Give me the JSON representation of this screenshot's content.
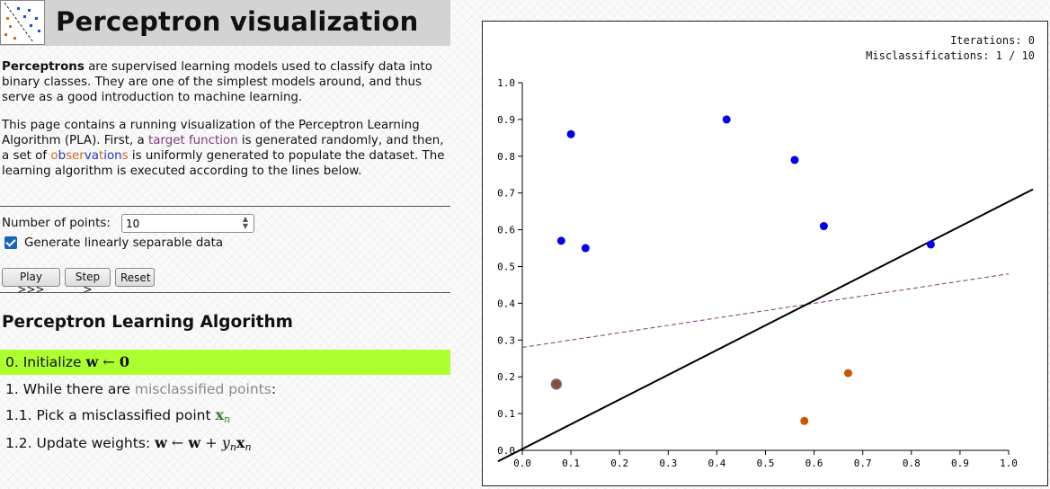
{
  "header": {
    "title": "Perceptron visualization",
    "logo_icon": "scatter-plot-icon"
  },
  "intro": {
    "p1_bold": "Perceptrons",
    "p1_rest": " are supervised learning models used to classify data into binary classes. They are one of the simplest models around, and thus serve as a good introduction to machine learning.",
    "p2_a": "This page contains a running visualization of the Perceptron Learning Algorithm (PLA). First, a ",
    "p2_link1": "target function",
    "p2_b": " is generated randomly, and then, a set of ",
    "p2_obs": [
      "o",
      "b",
      "s",
      "e",
      "r",
      "v",
      "a",
      "t",
      "i",
      "o",
      "n",
      "s"
    ],
    "p2_c": " is uniformly generated to populate the dataset. The learning algorithm is executed according to the lines below."
  },
  "controls": {
    "num_points_label": "Number of points:",
    "num_points_value": "10",
    "linear_sep_label": "Generate linearly separable data",
    "linear_sep_checked": true,
    "play_label": "Play >>>",
    "step_label": "Step >",
    "reset_label": "Reset"
  },
  "algorithm": {
    "title": "Perceptron Learning Algorithm",
    "step0_prefix": "0. Initialize ",
    "step1_prefix": "1. While there are ",
    "step1_link": "misclassified points",
    "step1_suffix": ":",
    "step2_prefix": "1.1. Pick a misclassified point ",
    "step3_prefix": "1.2. Update weights: ",
    "active_step": 0,
    "highlight_color": "#adff2f"
  },
  "status": {
    "iterations": "Iterations: 0",
    "misclassifications": "Misclassifications: 1 / 10"
  },
  "chart_data": {
    "type": "scatter",
    "xlim": [
      0,
      1
    ],
    "ylim": [
      0,
      1
    ],
    "xticks": [
      "0.0",
      "0.1",
      "0.2",
      "0.3",
      "0.4",
      "0.5",
      "0.6",
      "0.7",
      "0.8",
      "0.9",
      "1.0"
    ],
    "yticks": [
      "0.0",
      "0.1",
      "0.2",
      "0.3",
      "0.4",
      "0.5",
      "0.6",
      "0.7",
      "0.8",
      "0.9",
      "1.0"
    ],
    "points": [
      {
        "x": 0.1,
        "y": 0.86,
        "cls": "blue"
      },
      {
        "x": 0.42,
        "y": 0.9,
        "cls": "blue"
      },
      {
        "x": 0.56,
        "y": 0.79,
        "cls": "blue"
      },
      {
        "x": 0.08,
        "y": 0.57,
        "cls": "blue"
      },
      {
        "x": 0.13,
        "y": 0.55,
        "cls": "blue"
      },
      {
        "x": 0.62,
        "y": 0.61,
        "cls": "blue"
      },
      {
        "x": 0.84,
        "y": 0.56,
        "cls": "blue"
      },
      {
        "x": 0.07,
        "y": 0.18,
        "cls": "orange",
        "misclassified": true
      },
      {
        "x": 0.67,
        "y": 0.21,
        "cls": "orange"
      },
      {
        "x": 0.58,
        "y": 0.08,
        "cls": "orange"
      }
    ],
    "hypothesis_line": {
      "points": [
        [
          -0.05,
          -0.03
        ],
        [
          1.05,
          0.71
        ]
      ],
      "color": "#000000",
      "style": "solid"
    },
    "target_function": {
      "points": [
        [
          0.0,
          0.28
        ],
        [
          1.0,
          0.48
        ]
      ],
      "color": "#7b3a7b",
      "style": "dashed"
    },
    "colors": {
      "blue": "#0000ee",
      "orange": "#cc5500",
      "misclassified": "#8b4a3a",
      "target": "#7b3a7b"
    }
  }
}
